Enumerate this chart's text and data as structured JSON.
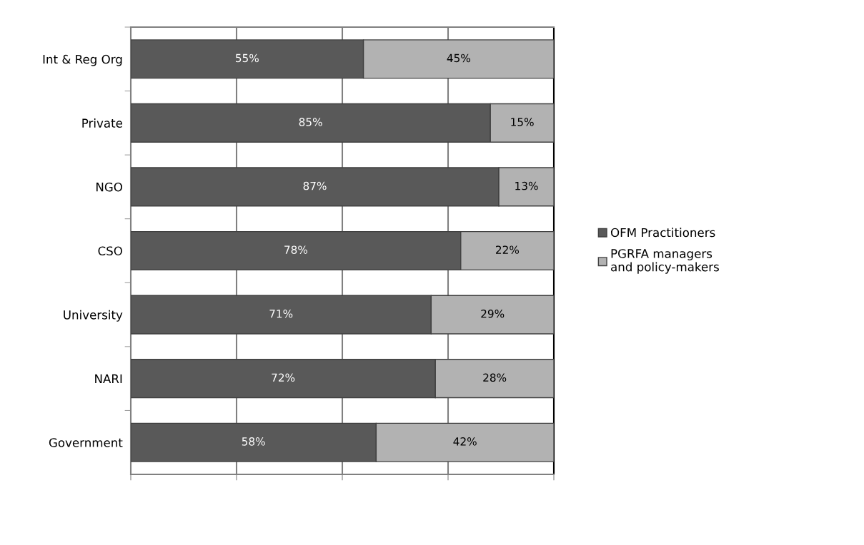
{
  "chart_data": {
    "type": "bar",
    "orientation": "horizontal",
    "stacked": true,
    "categories": [
      "Int & Reg Org",
      "Private",
      "NGO",
      "CSO",
      "University",
      "NARI",
      "Government"
    ],
    "series": [
      {
        "name": "OFM Practitioners",
        "color": "#595959",
        "values": [
          55,
          85,
          87,
          78,
          71,
          72,
          58
        ],
        "value_labels": [
          "55%",
          "85%",
          "87%",
          "78%",
          "71%",
          "72%",
          "58%"
        ]
      },
      {
        "name": "PGRFA managers\nand policy-makers",
        "color": "#b2b2b2",
        "values": [
          45,
          15,
          13,
          22,
          29,
          28,
          42
        ],
        "value_labels": [
          "45%",
          "15%",
          "13%",
          "22%",
          "29%",
          "28%",
          "42%"
        ]
      }
    ],
    "xlim": [
      0,
      100
    ],
    "xticks": [
      {
        "value": 0,
        "label": null
      },
      {
        "value": 25,
        "label": null
      },
      {
        "value": 50,
        "label": null
      },
      {
        "value": 75,
        "label": null
      },
      {
        "value": 100,
        "label": null
      }
    ],
    "grid": "x",
    "legend": "right"
  }
}
